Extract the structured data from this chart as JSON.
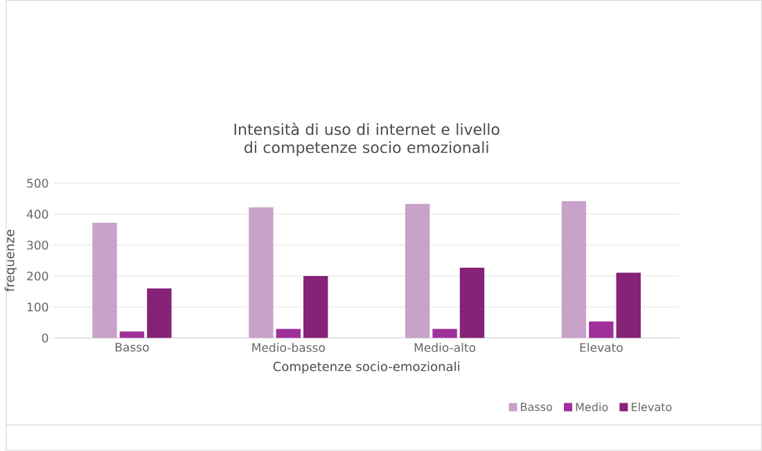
{
  "chart_data": {
    "type": "bar",
    "title": "Intensità di uso di internet e livello di competenze socio emozionali",
    "xlabel": "Competenze socio-emozionali",
    "ylabel": "frequenze",
    "categories": [
      "Basso",
      "Medio-basso",
      "Medio-alto",
      "Elevato"
    ],
    "series": [
      {
        "name": "Basso",
        "color": "#c8a2c8",
        "values": [
          372,
          422,
          433,
          442
        ]
      },
      {
        "name": "Medio",
        "color": "#a0309a",
        "values": [
          21,
          29,
          29,
          53
        ]
      },
      {
        "name": "Elevato",
        "color": "#862277",
        "values": [
          160,
          200,
          227,
          211
        ]
      }
    ],
    "ylim": [
      0,
      500
    ],
    "yticks": [
      0,
      100,
      200,
      300,
      400,
      500
    ],
    "grid": "y",
    "legend": "bottom right"
  }
}
